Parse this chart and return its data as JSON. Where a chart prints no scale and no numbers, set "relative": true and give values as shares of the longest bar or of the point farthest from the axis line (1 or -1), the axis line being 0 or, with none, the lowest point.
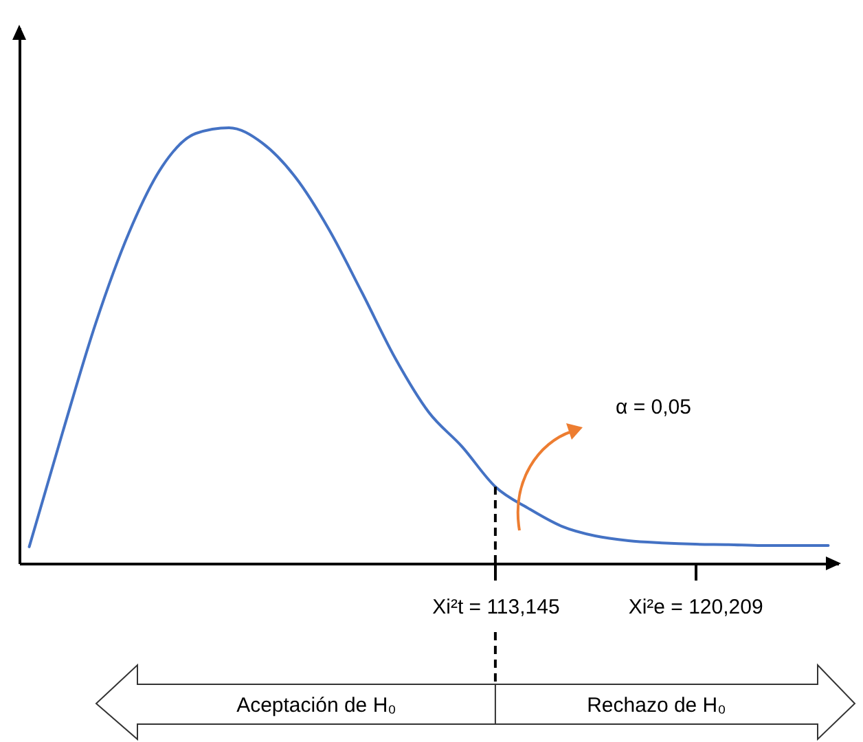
{
  "chart_data": {
    "type": "line",
    "relative": true,
    "categories": [
      null,
      null,
      null,
      null,
      null,
      null,
      null,
      null,
      null,
      null,
      null,
      null,
      null,
      null,
      "Xi²t = 113,145",
      null,
      null,
      null,
      null,
      null,
      "Xi²e = 120,209",
      null,
      null,
      null,
      null
    ],
    "series": [
      {
        "color": "#4472c4",
        "values": [
          0.038,
          0.3,
          0.552,
          0.76,
          0.912,
          0.987,
          1,
          0.965,
          0.886,
          0.767,
          0.621,
          0.47,
          0.347,
          0.268,
          0.176,
          0.126,
          0.085,
          0.063,
          0.052,
          0.047,
          0.044,
          0.043,
          0.041,
          0.041,
          0.041
        ]
      }
    ],
    "ref_lines": [
      {
        "axis": "x",
        "value": "Xi²t = 113,145",
        "line_style": "dashed",
        "color": "#000000"
      }
    ],
    "annotations": [
      "α = 0,05",
      "Aceptación de H₀",
      "Rechazo de H₀"
    ],
    "grid": false,
    "marker": "none",
    "line_style": "solid"
  }
}
